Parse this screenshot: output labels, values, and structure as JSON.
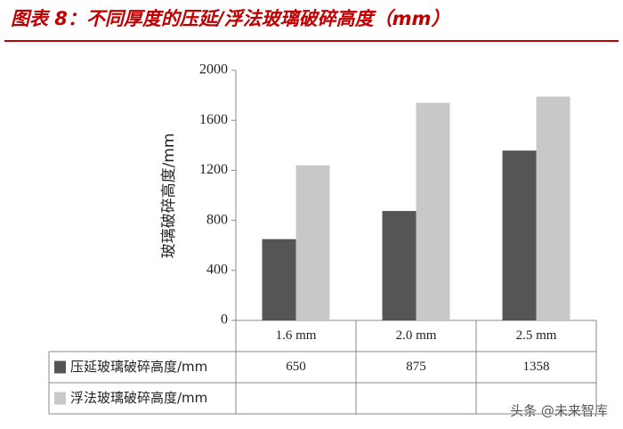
{
  "chart_data": {
    "type": "bar",
    "title": "图表 8：不同厚度的压延/浮法玻璃破碎高度（mm）",
    "y_label": "玻璃破碎高度/mm",
    "categories": [
      "1.6 mm",
      "2.0 mm",
      "2.5 mm"
    ],
    "series": [
      {
        "name": "压延玻璃破碎高度/mm",
        "color": "#555555",
        "values": [
          650,
          875,
          1358
        ]
      },
      {
        "name": "浮法玻璃破碎高度/mm",
        "color": "#c8c8c8",
        "values": [
          1240,
          1740,
          1790
        ]
      }
    ],
    "ylim": [
      0,
      2000
    ],
    "yticks": [
      0,
      400,
      800,
      1200,
      1600,
      2000
    ],
    "watermark": "头条 @未来智库"
  }
}
